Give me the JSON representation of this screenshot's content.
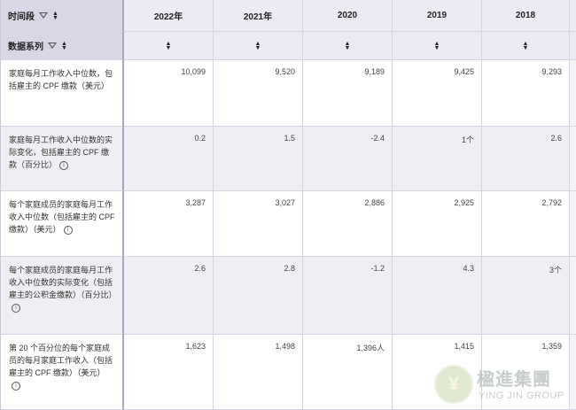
{
  "header": {
    "corner_label": "时间段",
    "series_label": "数据系列",
    "years": [
      "2022年",
      "2021年",
      "2020",
      "2019",
      "2018"
    ]
  },
  "rows": [
    {
      "label": "家庭每月工作收入中位数，包括雇主的 CPF 缴款（美元）",
      "info": false,
      "values": [
        "10,099",
        "9,520",
        "9,189",
        "9,425",
        "9,293"
      ]
    },
    {
      "label": "家庭每月工作收入中位数的实际变化，包括雇主的 CPF 缴款（百分比）",
      "info": true,
      "values": [
        "0.2",
        "1.5",
        "-2.4",
        "1个",
        "2.6"
      ]
    },
    {
      "label": "每个家庭成员的家庭每月工作收入中位数（包括雇主的 CPF 缴款）（美元）",
      "info": true,
      "values": [
        "3,287",
        "3,027",
        "2,886",
        "2,925",
        "2,792"
      ]
    },
    {
      "label": "每个家庭成员的家庭每月工作收入中位数的实际变化（包括雇主的公积金缴款）（百分比）",
      "info": true,
      "values": [
        "2.6",
        "2.8",
        "-1.2",
        "4.3",
        "3个"
      ]
    },
    {
      "label": "第 20 个百分位的每个家庭成员的每月家庭工作收入（包括雇主的 CPF 缴款）（美元）",
      "info": true,
      "values": [
        "1,623",
        "1,498",
        "1,396人",
        "1,415",
        "1,359"
      ]
    }
  ],
  "watermark": {
    "cn": "楹進集團",
    "en": "YING JIN GROUP"
  }
}
